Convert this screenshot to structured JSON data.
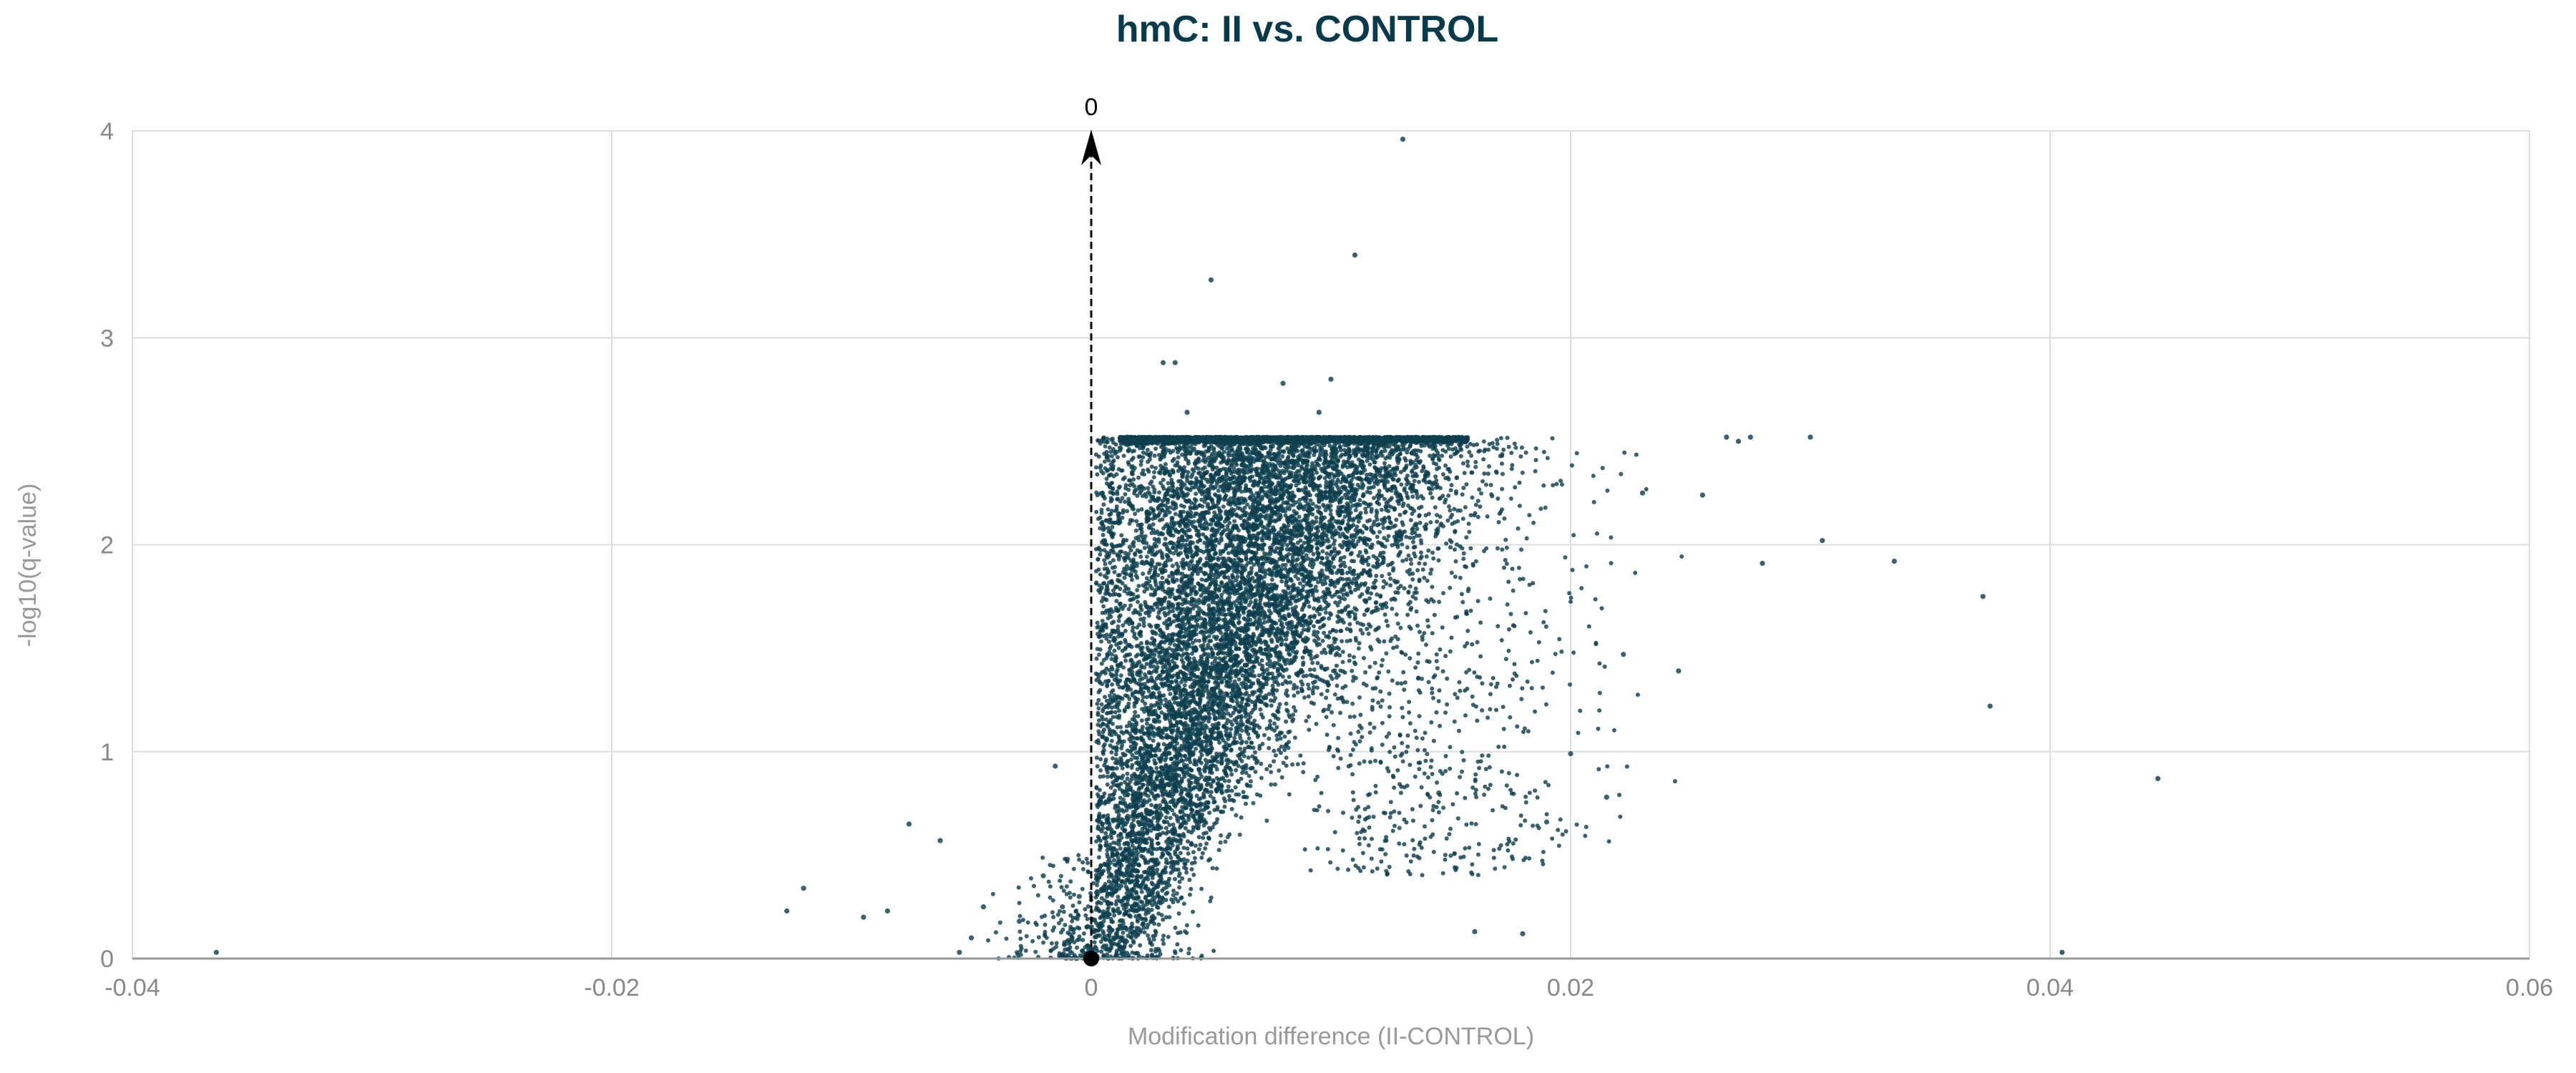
{
  "chart_data": {
    "type": "scatter",
    "title": "hmC: II vs. CONTROL",
    "xlabel": "Modification difference (II-CONTROL)",
    "ylabel": "-log10(q-value)",
    "xlim": [
      -0.04,
      0.06
    ],
    "ylim": [
      0,
      4
    ],
    "x_ticks": [
      -0.04,
      -0.02,
      0,
      0.02,
      0.04,
      0.06
    ],
    "x_tick_labels": [
      "-0.04",
      "-0.02",
      "0",
      "0.02",
      "0.04",
      "0.06"
    ],
    "y_ticks": [
      0,
      1,
      2,
      3,
      4
    ],
    "y_tick_labels": [
      "0",
      "1",
      "2",
      "3",
      "4"
    ],
    "grid": true,
    "legend": "none",
    "colors": {
      "points": "#0d3f4e",
      "title": "#073b4c",
      "grid": "#dddddd",
      "axis": "#999999"
    },
    "annotation": {
      "x": 0,
      "label": "0"
    },
    "series": [
      {
        "values": [
          [
            -0.0365,
            0.03
          ],
          [
            -0.0127,
            0.23
          ],
          [
            -0.012,
            0.34
          ],
          [
            -0.0095,
            0.2
          ],
          [
            -0.0085,
            0.23
          ],
          [
            -0.0076,
            0.65
          ],
          [
            -0.0063,
            0.57
          ],
          [
            -0.0055,
            0.03
          ],
          [
            -0.005,
            0.1
          ],
          [
            -0.0045,
            0.25
          ],
          [
            -0.003,
            0.18
          ],
          [
            -0.002,
            0.4
          ],
          [
            -0.0015,
            0.93
          ],
          [
            -0.0012,
            0.25
          ],
          [
            -0.001,
            0.48
          ],
          [
            -0.0008,
            0.1
          ],
          [
            -0.0005,
            0.3
          ],
          [
            0.0015,
            2.52
          ],
          [
            0.003,
            2.88
          ],
          [
            0.0035,
            2.88
          ],
          [
            0.004,
            2.64
          ],
          [
            0.005,
            3.28
          ],
          [
            0.008,
            2.78
          ],
          [
            0.0095,
            2.64
          ],
          [
            0.01,
            2.8
          ],
          [
            0.011,
            3.4
          ],
          [
            0.013,
            3.96
          ],
          [
            0.0145,
            0.8
          ],
          [
            0.016,
            0.13
          ],
          [
            0.018,
            0.12
          ],
          [
            0.019,
            0.66
          ],
          [
            0.02,
            0.99
          ],
          [
            0.0215,
            0.78
          ],
          [
            0.0222,
            1.47
          ],
          [
            0.023,
            2.25
          ],
          [
            0.0245,
            1.39
          ],
          [
            0.0255,
            2.24
          ],
          [
            0.0265,
            2.52
          ],
          [
            0.027,
            2.5
          ],
          [
            0.0275,
            2.52
          ],
          [
            0.028,
            1.91
          ],
          [
            0.03,
            2.52
          ],
          [
            0.0305,
            2.02
          ],
          [
            0.0335,
            1.92
          ],
          [
            0.0372,
            1.75
          ],
          [
            0.0375,
            1.22
          ],
          [
            0.0405,
            0.03
          ],
          [
            0.0445,
            0.87
          ]
        ]
      }
    ]
  }
}
